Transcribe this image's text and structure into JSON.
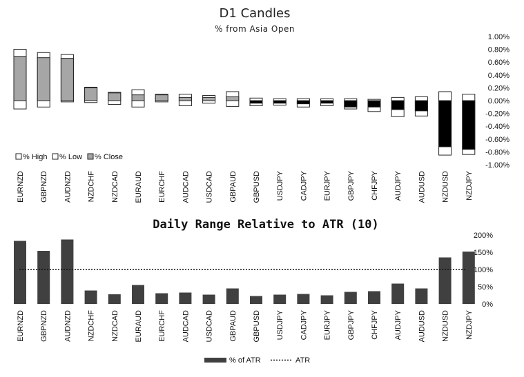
{
  "colors": {
    "close_fill": "#a6a6a6",
    "range_fill": "#ffffff",
    "bear_fill": "#000000",
    "bar_fill": "#404040",
    "outline": "#222222"
  },
  "chart_data": [
    {
      "type": "bar",
      "title": "D1 Candles",
      "subtitle": "% from Asia Open",
      "categories": [
        "EURNZD",
        "GBPNZD",
        "AUDNZD",
        "NZDCHF",
        "NZDCAD",
        "EURAUD",
        "EURCHF",
        "AUDCAD",
        "USDCAD",
        "GBPAUD",
        "GBPUSD",
        "USDJPY",
        "CADJPY",
        "EURJPY",
        "GBPJPY",
        "CHFJPY",
        "AUDJPY",
        "AUDUSD",
        "NZDUSD",
        "NZDJPY"
      ],
      "series": [
        {
          "name": "% High",
          "values": [
            0.8,
            0.75,
            0.72,
            0.21,
            0.13,
            0.17,
            0.1,
            0.1,
            0.08,
            0.14,
            0.04,
            0.03,
            0.03,
            0.03,
            0.03,
            0.02,
            0.05,
            0.06,
            0.14,
            0.1
          ]
        },
        {
          "name": "% Low",
          "values": [
            -0.13,
            -0.1,
            -0.02,
            -0.03,
            -0.06,
            -0.1,
            -0.02,
            -0.08,
            -0.04,
            -0.09,
            -0.08,
            -0.07,
            -0.1,
            -0.08,
            -0.13,
            -0.17,
            -0.25,
            -0.24,
            -0.85,
            -0.84
          ]
        },
        {
          "name": "% Close",
          "values": [
            0.69,
            0.67,
            0.66,
            0.2,
            0.12,
            0.09,
            0.09,
            0.05,
            0.05,
            0.06,
            -0.04,
            -0.04,
            -0.05,
            -0.04,
            -0.1,
            -0.1,
            -0.14,
            -0.16,
            -0.72,
            -0.76
          ]
        }
      ],
      "ylim": [
        -1.0,
        1.0
      ],
      "yticks": [
        "1.00%",
        "0.80%",
        "0.60%",
        "0.40%",
        "0.20%",
        "0.00%",
        "-0.20%",
        "-0.40%",
        "-0.60%",
        "-0.80%",
        "-1.00%"
      ],
      "grid": false,
      "legend": "bottom-left"
    },
    {
      "type": "bar",
      "title": "Daily Range Relative to ATR (10)",
      "categories": [
        "EURNZD",
        "GBPNZD",
        "AUDNZD",
        "NZDCHF",
        "NZDCAD",
        "EURAUD",
        "EURCHF",
        "AUDCAD",
        "USDCAD",
        "GBPAUD",
        "GBPUSD",
        "USDJPY",
        "CADJPY",
        "EURJPY",
        "GBPJPY",
        "CHFJPY",
        "AUDJPY",
        "AUDUSD",
        "NZDUSD",
        "NZDJPY"
      ],
      "series": [
        {
          "name": "% of ATR",
          "values": [
            183,
            154,
            187,
            39,
            28,
            55,
            31,
            33,
            27,
            45,
            23,
            27,
            29,
            25,
            35,
            37,
            59,
            45,
            135,
            152
          ]
        },
        {
          "name": "ATR",
          "values": [
            100,
            100,
            100,
            100,
            100,
            100,
            100,
            100,
            100,
            100,
            100,
            100,
            100,
            100,
            100,
            100,
            100,
            100,
            100,
            100
          ]
        }
      ],
      "ylim": [
        0,
        200
      ],
      "yticks": [
        "200%",
        "150%",
        "100%",
        "50%",
        "0%"
      ],
      "grid": false,
      "legend": "bottom"
    }
  ]
}
